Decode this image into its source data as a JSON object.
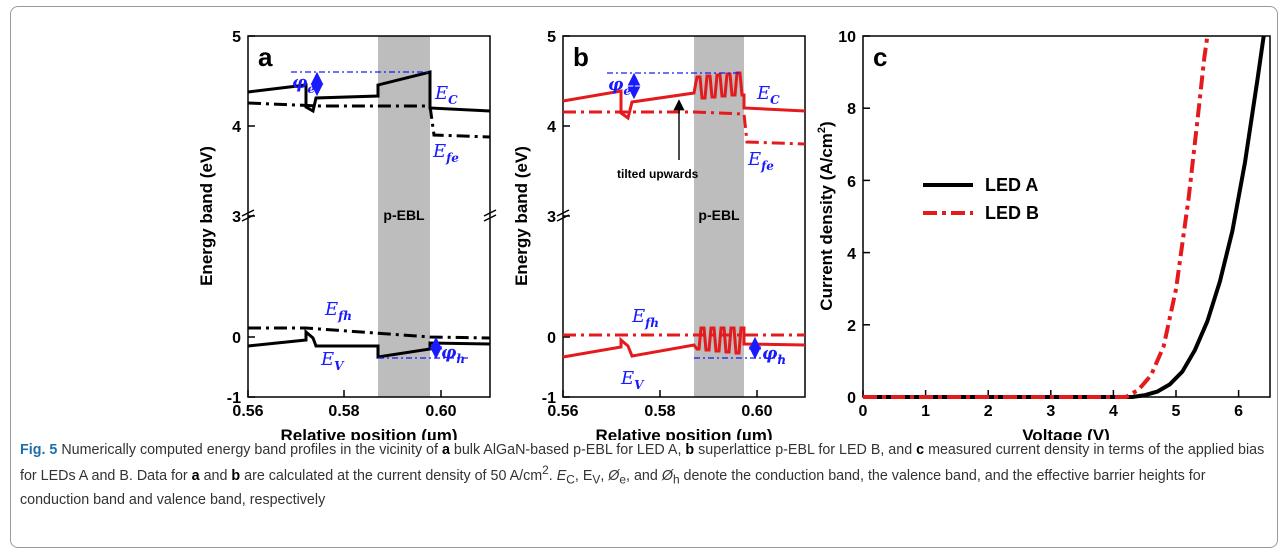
{
  "figure": {
    "panels": {
      "a": {
        "label": "a",
        "y_tick_labels": [
          "-1",
          "0",
          "3",
          "4",
          "5"
        ],
        "x_tick_labels": [
          "0.56",
          "0.58",
          "0.60"
        ],
        "ylabel": "Energy band (eV)",
        "xlabel": "Relative position (µm)",
        "ebl_label": "p-EBL",
        "annotations": {
          "Ec": "E",
          "Ec_sub": "C",
          "Efe": "E",
          "Efe_sub": "fe",
          "Efh": "E",
          "Efh_sub": "fh",
          "Ev": "E",
          "Ev_sub": "V",
          "phi_e": "φ",
          "phi_e_sub": "e",
          "phi_h": "φ",
          "phi_h_sub": "h"
        }
      },
      "b": {
        "label": "b",
        "y_tick_labels": [
          "-1",
          "0",
          "3",
          "4",
          "5"
        ],
        "x_tick_labels": [
          "0.56",
          "0.58",
          "0.60"
        ],
        "ylabel": "Energy band (eV)",
        "xlabel": "Relative position (µm)",
        "ebl_label": "p-EBL",
        "tilt_note": "tilted upwards",
        "annotations": {
          "Ec": "E",
          "Ec_sub": "C",
          "Efe": "E",
          "Efe_sub": "fe",
          "Efh": "E",
          "Efh_sub": "fh",
          "Ev": "E",
          "Ev_sub": "V",
          "phi_e": "φ",
          "phi_e_sub": "e",
          "phi_h": "φ",
          "phi_h_sub": "h"
        }
      },
      "c": {
        "label": "c",
        "y_tick_labels": [
          "0",
          "2",
          "4",
          "6",
          "8",
          "10"
        ],
        "x_tick_labels": [
          "0",
          "1",
          "2",
          "3",
          "4",
          "5",
          "6"
        ],
        "ylabel": "Current density (A/cm",
        "ylabel_sup": "2",
        "ylabel_end": ")",
        "xlabel": "Voltage (V)"
      }
    },
    "colors": {
      "led_a": "#000000",
      "led_b": "#e41a1c",
      "annotation": "#1a1aff",
      "ebl_shade": "#bdbdbd"
    }
  },
  "chart_data": [
    {
      "type": "line",
      "panel": "a",
      "x_range": [
        0.56,
        0.61
      ],
      "y_range": [
        -1,
        5
      ],
      "y_axis_break": [
        0.5,
        2.9
      ],
      "ebl_region": [
        0.587,
        0.597
      ],
      "series": [
        {
          "id": "Ec",
          "style": "solid",
          "x": [
            0.56,
            0.572,
            0.572,
            0.574,
            0.575,
            0.587,
            0.587,
            0.597,
            0.597,
            0.61
          ],
          "y": [
            4.38,
            4.45,
            4.2,
            4.12,
            4.27,
            4.3,
            4.42,
            4.56,
            4.17,
            4.13
          ]
        },
        {
          "id": "Efe",
          "style": "dashdot",
          "x": [
            0.56,
            0.575,
            0.597,
            0.598,
            0.61
          ],
          "y": [
            4.25,
            4.22,
            4.22,
            3.88,
            3.86
          ]
        },
        {
          "id": "Efh",
          "style": "dashdot",
          "x": [
            0.56,
            0.572,
            0.597,
            0.61
          ],
          "y": [
            0.15,
            0.15,
            0.0,
            -0.02
          ]
        },
        {
          "id": "Ev",
          "style": "solid",
          "x": [
            0.56,
            0.572,
            0.572,
            0.574,
            0.575,
            0.587,
            0.587,
            0.597,
            0.597,
            0.61
          ],
          "y": [
            -0.15,
            -0.06,
            0.08,
            -0.02,
            -0.15,
            -0.15,
            -0.33,
            -0.18,
            -0.1,
            -0.1
          ]
        }
      ],
      "annotations": {
        "phi_e": [
          4.56,
          4.3
        ],
        "phi_h": [
          0.0,
          -0.33
        ]
      }
    },
    {
      "type": "line",
      "panel": "b",
      "x_range": [
        0.56,
        0.61
      ],
      "y_range": [
        -1,
        5
      ],
      "y_axis_break": [
        0.5,
        2.9
      ],
      "ebl_region": [
        0.5875,
        0.5975
      ],
      "series": [
        {
          "id": "Ec",
          "style": "solid",
          "color_key": "led_b"
        },
        {
          "id": "Efe",
          "style": "dashdot",
          "x": [
            0.56,
            0.587,
            0.5975,
            0.598,
            0.61
          ],
          "y": [
            4.15,
            4.15,
            4.12,
            3.78,
            3.75
          ]
        },
        {
          "id": "Efh",
          "style": "dashdot",
          "x": [
            0.56,
            0.61
          ],
          "y": [
            0.02,
            0.02
          ]
        },
        {
          "id": "Ev",
          "style": "solid",
          "color_key": "led_b"
        }
      ],
      "annotations": {
        "phi_e": [
          4.56,
          4.3
        ],
        "phi_h": [
          0.0,
          -0.33
        ]
      }
    },
    {
      "type": "line",
      "panel": "c",
      "x_range": [
        0,
        6.5
      ],
      "y_range": [
        0,
        10
      ],
      "series": [
        {
          "name": "LED A",
          "style": "solid",
          "x": [
            0,
            4.3,
            4.5,
            4.7,
            4.9,
            5.1,
            5.3,
            5.5,
            5.7,
            5.9,
            6.1,
            6.3,
            6.4
          ],
          "y": [
            0,
            0,
            0.05,
            0.15,
            0.35,
            0.7,
            1.3,
            2.1,
            3.2,
            4.6,
            6.5,
            8.8,
            10
          ]
        },
        {
          "name": "LED B",
          "style": "dashdot",
          "x": [
            0,
            4.2,
            4.4,
            4.6,
            4.8,
            5.0,
            5.2,
            5.35,
            5.45,
            5.5
          ],
          "y": [
            0,
            0,
            0.2,
            0.6,
            1.4,
            3.0,
            5.5,
            7.8,
            9.4,
            10
          ]
        }
      ]
    }
  ],
  "caption": {
    "label": "Fig. 5",
    "t1": " Numerically computed energy band profiles in the vicinity of ",
    "a1": "a",
    "t2": " bulk AlGaN-based p-EBL for LED A, ",
    "b1": "b",
    "t3": " superlattice p-EBL for LED B, and ",
    "c1": "c",
    "t4": " measured current density in terms of the applied bias for LEDs A and B. Data for ",
    "a2": "a",
    "t5": " and ",
    "b2": "b",
    "t6": " are calculated at the current density of 50 A/cm",
    "sup": "2",
    "t7": ". ",
    "ec": "E",
    "ec_sub": "C",
    "t8": ", E",
    "ev_sub": "V",
    "t9": ", ",
    "oe": "Ø",
    "oe_sub": "e",
    "t10": ", and ",
    "oh": "Ø",
    "oh_sub": "h",
    "t11": " denote the conduction band, the valence band, and the effective barrier heights for conduction band and valence band, respectively"
  }
}
